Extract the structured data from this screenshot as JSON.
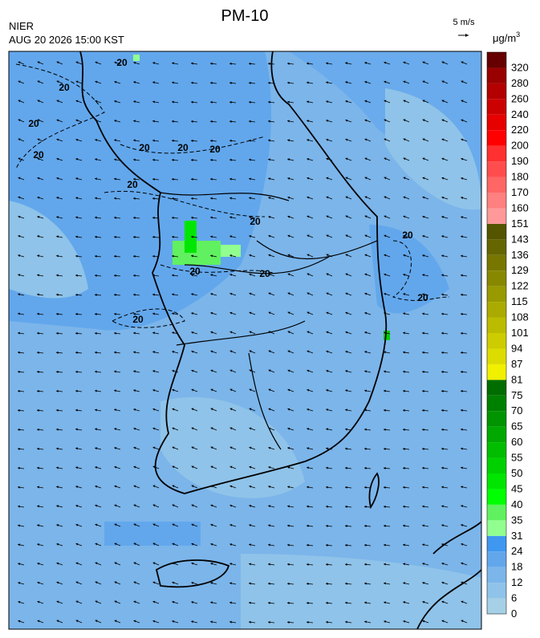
{
  "header": {
    "title": "PM-10",
    "agency": "NIER",
    "timestamp": "AUG 20 2026 15:00 KST",
    "wind_reference": "5 m/s",
    "unit": "μg/m",
    "unit_exponent": "3"
  },
  "map": {
    "contour_labels": [
      "20",
      "20",
      "20",
      "20",
      "20",
      "20",
      "20",
      "20",
      "20",
      "20",
      "20",
      "20",
      "20",
      "20"
    ]
  },
  "colorbar": {
    "bounds": [
      0,
      6,
      12,
      18,
      24,
      31,
      35,
      40,
      45,
      50,
      55,
      60,
      65,
      70,
      75,
      81,
      87,
      94,
      101,
      108,
      115,
      122,
      129,
      136,
      143,
      151,
      160,
      170,
      180,
      190,
      200,
      220,
      240,
      260,
      280,
      320
    ],
    "colors": [
      "#a6d0e6",
      "#8fc3e9",
      "#7bb5ea",
      "#62a7ec",
      "#3f97f0",
      "#90ff90",
      "#60f060",
      "#00ff00",
      "#00e600",
      "#00d000",
      "#00bd00",
      "#00a800",
      "#009400",
      "#008000",
      "#006d00",
      "#f0f000",
      "#dcdc00",
      "#cccc00",
      "#bbbb00",
      "#aaaa00",
      "#999900",
      "#888800",
      "#777700",
      "#666600",
      "#555500",
      "#ff9999",
      "#ff8080",
      "#ff6666",
      "#ff4d4d",
      "#ff3030",
      "#ff0000",
      "#e60000",
      "#cc0000",
      "#b30000",
      "#990000",
      "#660000"
    ]
  }
}
